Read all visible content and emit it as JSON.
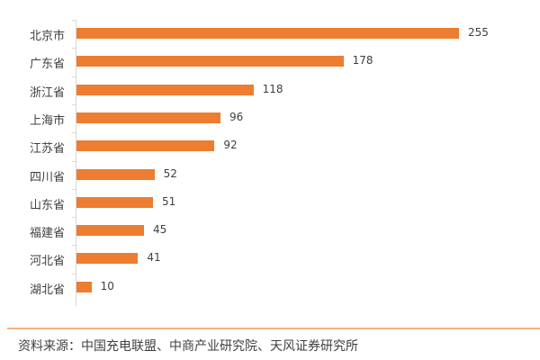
{
  "chart_data": {
    "type": "bar",
    "orientation": "horizontal",
    "categories": [
      "北京市",
      "广东省",
      "浙江省",
      "上海市",
      "江苏省",
      "四川省",
      "山东省",
      "福建省",
      "河北省",
      "湖北省"
    ],
    "values": [
      255,
      178,
      118,
      96,
      92,
      52,
      51,
      45,
      41,
      10
    ],
    "title": "",
    "xlabel": "",
    "ylabel": "",
    "xlim": [
      0,
      270
    ],
    "grid": false,
    "legend": null,
    "bar_color": "#ed7d31",
    "data_labels": true
  },
  "source": "资料来源：中国充电联盟、中商产业研究院、天风证券研究所"
}
